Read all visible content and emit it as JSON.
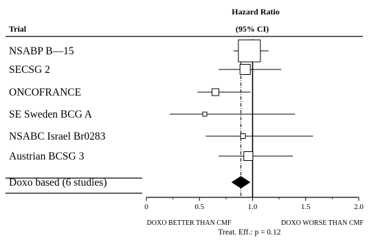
{
  "header": {
    "trial_label": "Trial",
    "hr_label_1": "Hazard Ratio",
    "hr_label_2": "(95% CI)"
  },
  "chart_data": {
    "type": "forest",
    "studies": [
      {
        "name": "NSABP B—15",
        "hr": 0.97,
        "lower": 0.82,
        "upper": 1.15
      },
      {
        "name": "SECSG 2",
        "hr": 0.93,
        "lower": 0.68,
        "upper": 1.27
      },
      {
        "name": "ONCOFRANCE",
        "hr": 0.65,
        "lower": 0.48,
        "upper": 0.98
      },
      {
        "name": "SE Sweden BCG A",
        "hr": 0.55,
        "lower": 0.22,
        "upper": 1.4
      },
      {
        "name": "NSABC Israel Br0283",
        "hr": 0.91,
        "lower": 0.56,
        "upper": 1.57
      },
      {
        "name": "Austrian BCSG 3",
        "hr": 0.96,
        "lower": 0.68,
        "upper": 1.38
      }
    ],
    "pooled": {
      "name": "Doxo based (6 studies)",
      "hr": 0.89,
      "lower": 0.8,
      "upper": 0.98
    },
    "xlim": [
      0,
      2.0
    ],
    "xticks": [
      "0",
      "0.5",
      "1.0",
      "1.5",
      "2.0"
    ],
    "left_direction_label": "DOXO BETTER THAN CMF",
    "right_direction_label": "DOXO WORSE THAN CMF",
    "test_label": "Treat. Eff.:  p = 0.12"
  }
}
